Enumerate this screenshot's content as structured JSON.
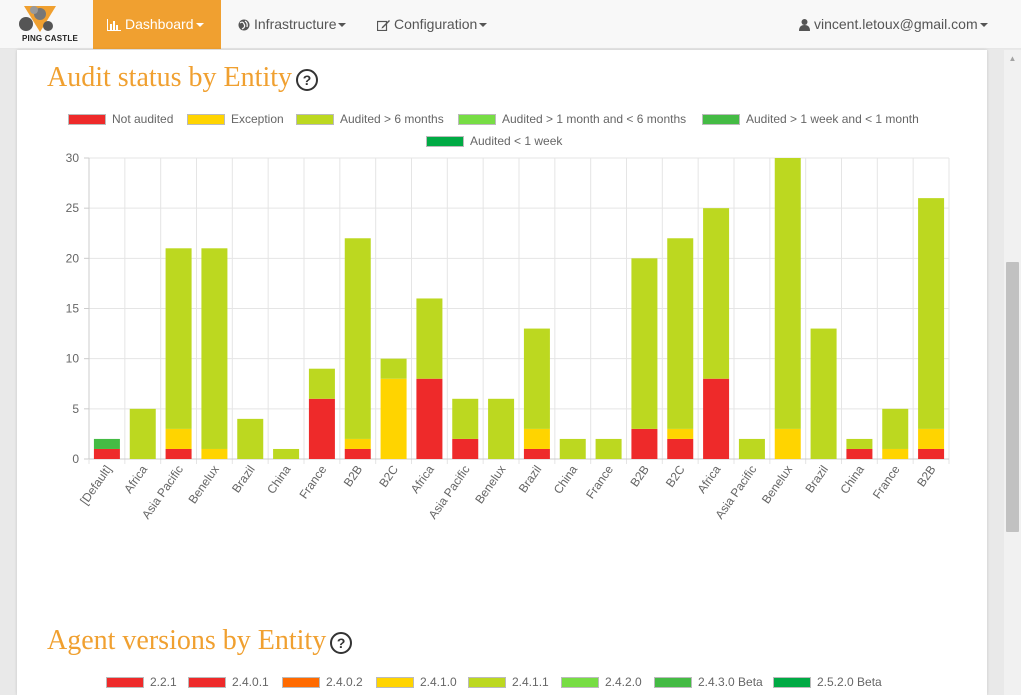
{
  "nav": {
    "logo_text": "PING CASTLE",
    "items": [
      {
        "label": "Dashboard",
        "icon": "bar-chart-icon",
        "active": true
      },
      {
        "label": "Infrastructure",
        "icon": "globe-icon",
        "active": false
      },
      {
        "label": "Configuration",
        "icon": "edit-icon",
        "active": false
      }
    ],
    "user": "vincent.letoux@gmail.com"
  },
  "sections": [
    {
      "title": "Audit status by Entity",
      "help": "?"
    },
    {
      "title": "Agent versions by Entity",
      "help": "?"
    }
  ],
  "chart_data": [
    {
      "type": "bar",
      "stacked": true,
      "legend_position": "top",
      "grid": true,
      "ylim": [
        0,
        30
      ],
      "yticks": [
        0,
        5,
        10,
        15,
        20,
        25,
        30
      ],
      "categories": [
        "[Default]",
        "Africa",
        "Asia Pacific",
        "Benelux",
        "Brazil",
        "China",
        "France",
        "B2B",
        "B2C",
        "Africa",
        "Asia Pacific",
        "Benelux",
        "Brazil",
        "China",
        "France",
        "B2B",
        "B2C",
        "Africa",
        "Asia Pacific",
        "Benelux",
        "Brazil",
        "China",
        "France",
        "B2B"
      ],
      "series": [
        {
          "name": "Not audited",
          "color": "#ee2a2a",
          "values": [
            1,
            0,
            1,
            0,
            0,
            0,
            6,
            1,
            0,
            8,
            2,
            0,
            1,
            0,
            0,
            3,
            2,
            8,
            0,
            0,
            0,
            1,
            0,
            1
          ]
        },
        {
          "name": "Exception",
          "color": "#ffd400",
          "values": [
            0,
            0,
            2,
            1,
            0,
            0,
            0,
            1,
            8,
            0,
            0,
            0,
            2,
            0,
            0,
            0,
            1,
            0,
            0,
            3,
            0,
            0,
            1,
            2
          ]
        },
        {
          "name": "Audited > 6 months",
          "color": "#bcd820",
          "values": [
            0,
            5,
            18,
            20,
            4,
            1,
            3,
            20,
            2,
            8,
            4,
            6,
            10,
            2,
            2,
            17,
            19,
            17,
            2,
            27,
            13,
            1,
            4,
            23
          ]
        },
        {
          "name": "Audited > 1 month and < 6 months",
          "color": "#77dd44",
          "values": [
            0,
            0,
            0,
            0,
            0,
            0,
            0,
            0,
            0,
            0,
            0,
            0,
            0,
            0,
            0,
            0,
            0,
            0,
            0,
            0,
            0,
            0,
            0,
            0
          ]
        },
        {
          "name": "Audited > 1 week and < 1 month",
          "color": "#44bb44",
          "values": [
            1,
            0,
            0,
            0,
            0,
            0,
            0,
            0,
            0,
            0,
            0,
            0,
            0,
            0,
            0,
            0,
            0,
            0,
            0,
            0,
            0,
            0,
            0,
            0
          ]
        },
        {
          "name": "Audited < 1 week",
          "color": "#00aa44",
          "values": [
            0,
            0,
            0,
            0,
            0,
            0,
            0,
            0,
            0,
            0,
            0,
            0,
            0,
            0,
            0,
            0,
            0,
            0,
            0,
            0,
            0,
            0,
            0,
            0
          ]
        }
      ]
    },
    {
      "type": "bar",
      "stacked": true,
      "legend_position": "top",
      "series": [
        {
          "name": "2.2.1",
          "color": "#ee2a2a"
        },
        {
          "name": "2.4.0.1",
          "color": "#ee2a2a"
        },
        {
          "name": "2.4.0.2",
          "color": "#ff6a00"
        },
        {
          "name": "2.4.1.0",
          "color": "#ffd400"
        },
        {
          "name": "2.4.1.1",
          "color": "#bcd820"
        },
        {
          "name": "2.4.2.0",
          "color": "#77dd44"
        },
        {
          "name": "2.4.3.0 Beta",
          "color": "#44bb44"
        },
        {
          "name": "2.5.2.0 Beta",
          "color": "#00aa44"
        }
      ]
    }
  ]
}
